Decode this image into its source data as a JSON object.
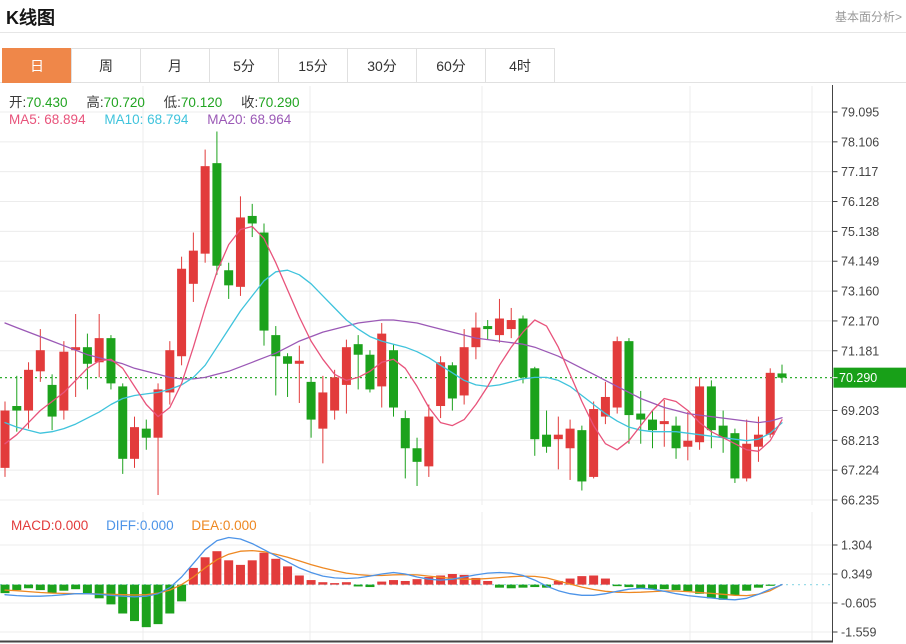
{
  "header": {
    "title": "K线图",
    "link": "基本面分析>"
  },
  "tabs": {
    "items": [
      {
        "label": "日",
        "active": true
      },
      {
        "label": "周",
        "active": false
      },
      {
        "label": "月",
        "active": false
      },
      {
        "label": "5分",
        "active": false
      },
      {
        "label": "15分",
        "active": false
      },
      {
        "label": "30分",
        "active": false
      },
      {
        "label": "60分",
        "active": false
      },
      {
        "label": "4时",
        "active": false
      }
    ]
  },
  "legend": {
    "ohlc": [
      {
        "label": "开:",
        "value": "70.430"
      },
      {
        "label": "高:",
        "value": "70.720"
      },
      {
        "label": "低:",
        "value": "70.120"
      },
      {
        "label": "收:",
        "value": "70.290"
      }
    ],
    "ma": [
      {
        "label": "MA5:",
        "value": "68.894"
      },
      {
        "label": "MA10:",
        "value": "68.794"
      },
      {
        "label": "MA20:",
        "value": "68.964"
      }
    ],
    "macd": [
      {
        "label": "MACD:",
        "value": "0.000"
      },
      {
        "label": "DIFF:",
        "value": "0.000"
      },
      {
        "label": "DEA:",
        "value": "0.000"
      }
    ]
  },
  "chart_data": {
    "type": "candlestick",
    "title": "K线图",
    "legend_position": "top-left",
    "grid": true,
    "main": {
      "ylim": [
        66.235,
        79.095
      ],
      "y_ticks": [
        {
          "v": 79.095,
          "label": "79.095"
        },
        {
          "v": 78.106,
          "label": "78.106"
        },
        {
          "v": 77.117,
          "label": "77.117"
        },
        {
          "v": 76.128,
          "label": "76.128"
        },
        {
          "v": 75.138,
          "label": "75.138"
        },
        {
          "v": 74.149,
          "label": "74.149"
        },
        {
          "v": 73.16,
          "label": "73.160"
        },
        {
          "v": 72.17,
          "label": "72.170"
        },
        {
          "v": 71.181,
          "label": "71.181"
        },
        {
          "v": 70.29,
          "label": "70.290",
          "current": true
        },
        {
          "v": 69.203,
          "label": "69.203"
        },
        {
          "v": 68.213,
          "label": "68.213"
        },
        {
          "v": 67.224,
          "label": "67.224"
        },
        {
          "v": 66.235,
          "label": "66.235"
        }
      ],
      "price_line": {
        "value": 70.29,
        "label": "70.290"
      },
      "last_candle": {
        "open": 70.43,
        "high": 70.72,
        "low": 70.12,
        "close": 70.29
      },
      "candles": [
        [
          67.3,
          69.5,
          67.0,
          69.2
        ],
        [
          69.35,
          70.35,
          68.5,
          69.2
        ],
        [
          69.2,
          70.8,
          68.6,
          70.55
        ],
        [
          70.5,
          71.9,
          70.15,
          71.2
        ],
        [
          70.05,
          70.4,
          68.55,
          69.0
        ],
        [
          69.2,
          71.5,
          68.9,
          71.15
        ],
        [
          71.2,
          72.4,
          69.65,
          71.3
        ],
        [
          71.3,
          71.75,
          69.9,
          70.75
        ],
        [
          70.8,
          72.4,
          70.3,
          71.6
        ],
        [
          71.6,
          71.7,
          69.9,
          70.1
        ],
        [
          70.0,
          70.1,
          67.1,
          67.6
        ],
        [
          67.6,
          69.0,
          67.3,
          68.65
        ],
        [
          68.6,
          68.9,
          67.9,
          68.3
        ],
        [
          68.3,
          70.1,
          66.4,
          69.9
        ],
        [
          69.8,
          71.5,
          69.4,
          71.2
        ],
        [
          71.0,
          74.3,
          70.7,
          73.9
        ],
        [
          73.4,
          75.1,
          72.8,
          74.5
        ],
        [
          74.4,
          77.85,
          74.1,
          77.3
        ],
        [
          77.4,
          78.45,
          73.7,
          74.0
        ],
        [
          73.85,
          74.1,
          72.9,
          73.35
        ],
        [
          73.3,
          76.3,
          73.0,
          75.6
        ],
        [
          75.65,
          76.05,
          74.95,
          75.4
        ],
        [
          75.1,
          75.4,
          71.35,
          71.85
        ],
        [
          71.7,
          72.0,
          69.7,
          71.0
        ],
        [
          71.0,
          71.1,
          69.65,
          70.75
        ],
        [
          70.75,
          71.35,
          69.45,
          70.85
        ],
        [
          70.15,
          70.3,
          68.3,
          68.9
        ],
        [
          68.6,
          70.35,
          67.45,
          69.8
        ],
        [
          69.2,
          70.55,
          68.9,
          70.3
        ],
        [
          70.05,
          71.55,
          69.1,
          71.3
        ],
        [
          71.4,
          71.7,
          69.9,
          71.05
        ],
        [
          71.05,
          71.2,
          69.8,
          69.9
        ],
        [
          70.0,
          72.1,
          69.3,
          71.75
        ],
        [
          71.2,
          71.4,
          69.0,
          69.3
        ],
        [
          68.95,
          69.2,
          66.95,
          67.95
        ],
        [
          67.95,
          68.3,
          66.7,
          67.5
        ],
        [
          67.35,
          69.4,
          67.0,
          69.0
        ],
        [
          69.35,
          71.0,
          68.95,
          70.8
        ],
        [
          70.7,
          70.8,
          69.2,
          69.6
        ],
        [
          69.7,
          71.9,
          69.4,
          71.3
        ],
        [
          71.3,
          72.45,
          70.9,
          71.95
        ],
        [
          72.0,
          72.2,
          71.55,
          71.9
        ],
        [
          71.7,
          72.9,
          71.45,
          72.25
        ],
        [
          71.9,
          72.6,
          71.6,
          72.2
        ],
        [
          72.25,
          72.35,
          70.1,
          70.3
        ],
        [
          70.6,
          70.65,
          67.7,
          68.25
        ],
        [
          68.4,
          69.2,
          67.8,
          68.0
        ],
        [
          68.25,
          69.0,
          67.25,
          68.4
        ],
        [
          67.95,
          68.9,
          66.9,
          68.6
        ],
        [
          68.55,
          68.7,
          66.55,
          66.85
        ],
        [
          67.0,
          69.5,
          66.95,
          69.25
        ],
        [
          69.0,
          70.15,
          68.75,
          69.65
        ],
        [
          69.3,
          71.65,
          69.1,
          71.5
        ],
        [
          71.5,
          71.6,
          68.1,
          69.05
        ],
        [
          69.1,
          69.85,
          68.1,
          68.9
        ],
        [
          68.9,
          69.2,
          67.95,
          68.55
        ],
        [
          68.75,
          69.55,
          68.0,
          68.85
        ],
        [
          68.7,
          69.0,
          67.6,
          67.95
        ],
        [
          68.0,
          69.15,
          67.55,
          68.2
        ],
        [
          68.15,
          70.3,
          67.9,
          70.0
        ],
        [
          70.0,
          70.2,
          67.95,
          68.55
        ],
        [
          68.7,
          69.2,
          67.8,
          68.3
        ],
        [
          68.45,
          68.6,
          66.8,
          66.95
        ],
        [
          66.95,
          68.9,
          66.85,
          68.1
        ],
        [
          68.0,
          69.0,
          67.5,
          68.4
        ],
        [
          68.4,
          70.6,
          68.3,
          70.45
        ],
        [
          70.43,
          70.72,
          70.12,
          70.29
        ]
      ],
      "ma5": [
        68.1,
        68.4,
        68.8,
        69.2,
        69.5,
        69.8,
        70.2,
        70.6,
        70.85,
        70.9,
        70.6,
        70.0,
        69.4,
        69.0,
        69.3,
        70.1,
        71.3,
        72.6,
        73.8,
        74.7,
        75.2,
        75.3,
        74.9,
        74.1,
        73.2,
        72.3,
        71.5,
        70.9,
        70.4,
        70.2,
        70.3,
        70.5,
        70.8,
        70.9,
        70.6,
        70.0,
        69.3,
        68.8,
        68.7,
        68.9,
        69.4,
        70.0,
        70.7,
        71.3,
        71.8,
        72.2,
        72.0,
        71.3,
        70.4,
        69.5,
        68.7,
        68.1,
        67.9,
        68.2,
        68.7,
        69.2,
        69.6,
        69.5,
        69.2,
        68.8,
        68.5,
        68.3,
        68.1,
        67.9,
        67.85,
        68.2,
        68.894
      ],
      "ma10": [
        68.8,
        68.65,
        68.55,
        68.45,
        68.5,
        68.6,
        68.75,
        68.95,
        69.15,
        69.4,
        69.6,
        69.7,
        69.75,
        69.8,
        69.9,
        70.05,
        70.3,
        70.7,
        71.3,
        71.9,
        72.5,
        73.0,
        73.5,
        73.8,
        73.85,
        73.7,
        73.4,
        73.0,
        72.6,
        72.2,
        71.9,
        71.65,
        71.5,
        71.4,
        71.3,
        71.15,
        70.95,
        70.7,
        70.45,
        70.2,
        70.05,
        70.0,
        70.05,
        70.15,
        70.25,
        70.3,
        70.3,
        70.2,
        70.0,
        69.7,
        69.4,
        69.1,
        68.85,
        68.65,
        68.55,
        68.5,
        68.5,
        68.5,
        68.45,
        68.4,
        68.35,
        68.3,
        68.25,
        68.2,
        68.25,
        68.45,
        68.794
      ],
      "ma20": [
        72.1,
        71.95,
        71.8,
        71.65,
        71.5,
        71.35,
        71.2,
        71.05,
        70.95,
        70.85,
        70.75,
        70.6,
        70.5,
        70.4,
        70.3,
        70.25,
        70.25,
        70.3,
        70.4,
        70.5,
        70.65,
        70.8,
        70.95,
        71.1,
        71.3,
        71.5,
        71.65,
        71.8,
        71.9,
        72.0,
        72.1,
        72.15,
        72.2,
        72.2,
        72.15,
        72.1,
        72.0,
        71.9,
        71.8,
        71.7,
        71.6,
        71.55,
        71.5,
        71.45,
        71.4,
        71.3,
        71.15,
        71.0,
        70.8,
        70.6,
        70.4,
        70.2,
        70.0,
        69.8,
        69.6,
        69.45,
        69.3,
        69.2,
        69.1,
        69.05,
        69.0,
        68.95,
        68.9,
        68.85,
        68.8,
        68.85,
        68.964
      ]
    },
    "macd": {
      "ylim": [
        -1.559,
        1.304
      ],
      "y_ticks": [
        {
          "v": 1.304,
          "label": "1.304"
        },
        {
          "v": 0.349,
          "label": "0.349"
        },
        {
          "v": -0.605,
          "label": "-0.605"
        },
        {
          "v": -1.559,
          "label": "-1.559"
        }
      ],
      "histogram": [
        -0.28,
        -0.18,
        -0.12,
        -0.18,
        -0.28,
        -0.2,
        -0.15,
        -0.28,
        -0.45,
        -0.65,
        -0.95,
        -1.2,
        -1.4,
        -1.3,
        -0.95,
        -0.55,
        0.55,
        0.9,
        1.1,
        0.8,
        0.65,
        0.8,
        1.05,
        0.85,
        0.6,
        0.3,
        0.15,
        0.08,
        0.05,
        0.08,
        -0.06,
        -0.08,
        0.1,
        0.15,
        0.12,
        0.18,
        0.25,
        0.3,
        0.35,
        0.32,
        0.22,
        0.12,
        -0.1,
        -0.12,
        -0.1,
        -0.08,
        -0.1,
        0.12,
        0.2,
        0.28,
        0.3,
        0.2,
        -0.05,
        -0.08,
        -0.12,
        -0.15,
        -0.15,
        -0.18,
        -0.22,
        -0.3,
        -0.45,
        -0.5,
        -0.35,
        -0.2,
        -0.1,
        -0.04,
        0.0
      ],
      "diff": [
        -0.33,
        -0.36,
        -0.38,
        -0.38,
        -0.36,
        -0.33,
        -0.3,
        -0.3,
        -0.32,
        -0.35,
        -0.38,
        -0.4,
        -0.38,
        -0.3,
        -0.1,
        0.25,
        0.7,
        1.15,
        1.45,
        1.55,
        1.5,
        1.35,
        1.15,
        0.95,
        0.75,
        0.55,
        0.4,
        0.28,
        0.22,
        0.2,
        0.22,
        0.28,
        0.35,
        0.4,
        0.35,
        0.25,
        0.18,
        0.15,
        0.18,
        0.25,
        0.32,
        0.38,
        0.4,
        0.38,
        0.3,
        0.15,
        -0.05,
        -0.2,
        -0.3,
        -0.35,
        -0.35,
        -0.3,
        -0.22,
        -0.15,
        -0.12,
        -0.15,
        -0.22,
        -0.3,
        -0.36,
        -0.4,
        -0.44,
        -0.48,
        -0.5,
        -0.45,
        -0.32,
        -0.15,
        0.0
      ],
      "dea": [
        -0.18,
        -0.2,
        -0.23,
        -0.26,
        -0.28,
        -0.29,
        -0.3,
        -0.3,
        -0.31,
        -0.32,
        -0.33,
        -0.34,
        -0.33,
        -0.28,
        -0.18,
        0.0,
        0.25,
        0.55,
        0.82,
        1.0,
        1.1,
        1.12,
        1.08,
        1.0,
        0.9,
        0.78,
        0.66,
        0.55,
        0.46,
        0.38,
        0.33,
        0.3,
        0.3,
        0.32,
        0.33,
        0.32,
        0.28,
        0.24,
        0.2,
        0.18,
        0.18,
        0.2,
        0.23,
        0.26,
        0.28,
        0.27,
        0.22,
        0.12,
        0.02,
        -0.08,
        -0.16,
        -0.22,
        -0.25,
        -0.26,
        -0.25,
        -0.23,
        -0.21,
        -0.21,
        -0.23,
        -0.26,
        -0.29,
        -0.32,
        -0.35,
        -0.36,
        -0.32,
        -0.2,
        0.0
      ]
    },
    "colors": {
      "up": "#e23b3b",
      "down": "#1ca21c",
      "ma5": "#e8537b",
      "ma10": "#3fc3dc",
      "ma20": "#9b59b6",
      "diff": "#4d94e8",
      "dea": "#ee8822",
      "price_line": "#2fae2f",
      "price_badge": "#18a018",
      "macd_zero": "#9adce8",
      "grid": "#ececec",
      "axis": "#444444",
      "active_tab": "#ef8749"
    }
  }
}
